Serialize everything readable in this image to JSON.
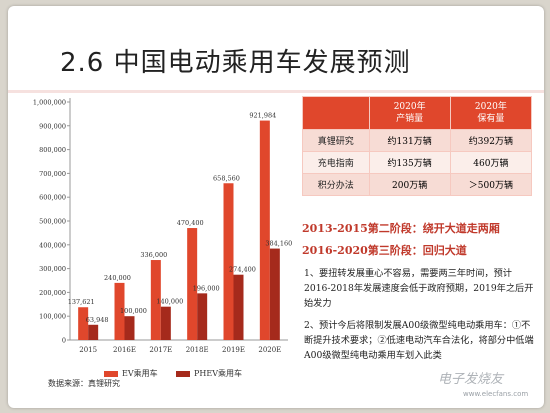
{
  "slide": {
    "title": "2.6 中国电动乘用车发展预测",
    "source": "数据来源：真锂研究",
    "watermark": "电子发烧友",
    "watermark_url": "www.elecfans.com"
  },
  "colors": {
    "ev": "#e0472c",
    "phev": "#a52a1c",
    "accent": "#c0392b"
  },
  "chart_data": {
    "type": "bar",
    "categories": [
      "2015",
      "2016E",
      "2017E",
      "2018E",
      "2019E",
      "2020E"
    ],
    "series": [
      {
        "name": "EV乘用车",
        "values": [
          137621,
          240000,
          336000,
          470400,
          658560,
          921984
        ],
        "labels": [
          "137,621",
          "240,000",
          "336,000",
          "470,400",
          "658,560",
          "921,984"
        ]
      },
      {
        "name": "PHEV乘用车",
        "values": [
          63948,
          100000,
          140000,
          196000,
          274400,
          384160
        ],
        "labels": [
          "63,948",
          "100,000",
          "140,000",
          "196,000",
          "274,400",
          "384,160"
        ]
      }
    ],
    "yticks": [
      "0",
      "100,000",
      "200,000",
      "300,000",
      "400,000",
      "500,000",
      "600,000",
      "700,000",
      "800,000",
      "900,000",
      "1,000,000"
    ],
    "ylim": [
      0,
      1000000
    ],
    "grid": false,
    "legend": "bottom"
  },
  "table": {
    "headers": [
      "",
      "2020年\n产销量",
      "2020年\n保有量"
    ],
    "rows": [
      [
        "真锂研究",
        "约131万辆",
        "约392万辆"
      ],
      [
        "充电指南",
        "约135万辆",
        "460万辆"
      ],
      [
        "积分办法",
        "200万辆",
        "＞500万辆"
      ]
    ]
  },
  "stages": [
    "2013-2015第二阶段：绕开大道走两厢",
    "2016-2020第三阶段：回归大道"
  ],
  "notes": [
    "1、要扭转发展重心不容易，需要两三年时间，预计2016-2018年发展速度会低于政府预期，2019年之后开始发力",
    "2、预计今后将限制发展A00级微型纯电动乘用车：①不断提升技术要求；②低速电动汽车合法化，将部分中低端A00级微型纯电动乘用车划入此类"
  ]
}
